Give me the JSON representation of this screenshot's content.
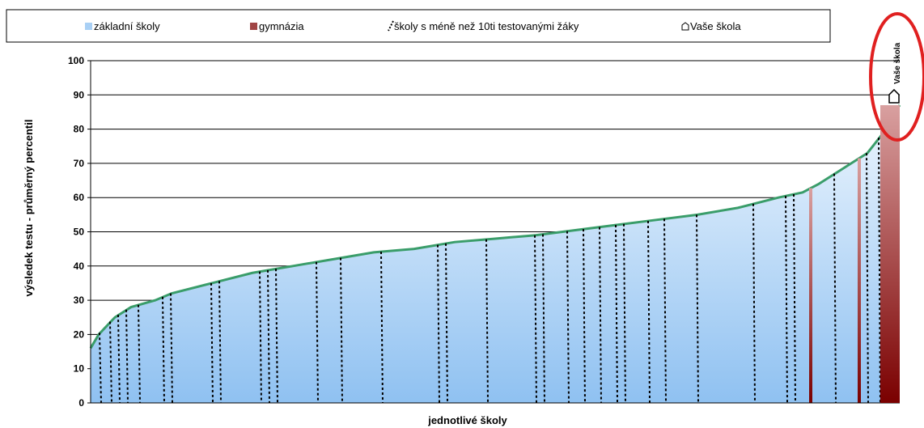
{
  "chart_data": {
    "type": "area",
    "title": "",
    "xlabel": "jednotlivé školy",
    "ylabel": "výsledek testu - průměrný percentil",
    "ylim": [
      0,
      100
    ],
    "yticks": [
      0,
      10,
      20,
      30,
      40,
      50,
      60,
      70,
      80,
      90,
      100
    ],
    "grid": true,
    "legend_position": "top",
    "legend": [
      {
        "key": "zakladni",
        "label": "základní školy"
      },
      {
        "key": "gymnazia",
        "label": "gymnázia"
      },
      {
        "key": "male",
        "label": "školy s méně než 10ti testovanými žáky"
      },
      {
        "key": "vase",
        "label": "Vaše škola"
      }
    ],
    "series": [
      {
        "name": "základní školy",
        "x": [
          0,
          0.01,
          0.03,
          0.05,
          0.08,
          0.1,
          0.15,
          0.2,
          0.25,
          0.3,
          0.35,
          0.4,
          0.45,
          0.5,
          0.55,
          0.6,
          0.65,
          0.7,
          0.75,
          0.8,
          0.85,
          0.88,
          0.9,
          0.92,
          0.94,
          0.96,
          0.97,
          0.98,
          0.99,
          1.0
        ],
        "values": [
          16,
          20,
          25,
          28,
          30,
          32,
          35,
          38,
          40,
          42,
          44,
          45,
          47,
          48,
          49,
          50.5,
          52,
          53.5,
          55,
          57,
          60,
          61.5,
          64,
          67,
          70,
          73,
          76,
          79,
          84,
          87
        ]
      }
    ],
    "small_school_x": [
      0.012,
      0.025,
      0.035,
      0.045,
      0.06,
      0.09,
      0.1,
      0.15,
      0.16,
      0.21,
      0.22,
      0.23,
      0.28,
      0.31,
      0.36,
      0.43,
      0.44,
      0.49,
      0.55,
      0.56,
      0.59,
      0.61,
      0.63,
      0.65,
      0.66,
      0.69,
      0.71,
      0.75,
      0.82,
      0.86,
      0.87,
      0.92,
      0.95,
      0.96,
      0.975,
      0.985
    ],
    "gymnazia_x": [
      0.89,
      0.95,
      0.98
    ],
    "vase_skola": {
      "x": 1.0,
      "value": 87,
      "label": "Vaše škola"
    }
  }
}
